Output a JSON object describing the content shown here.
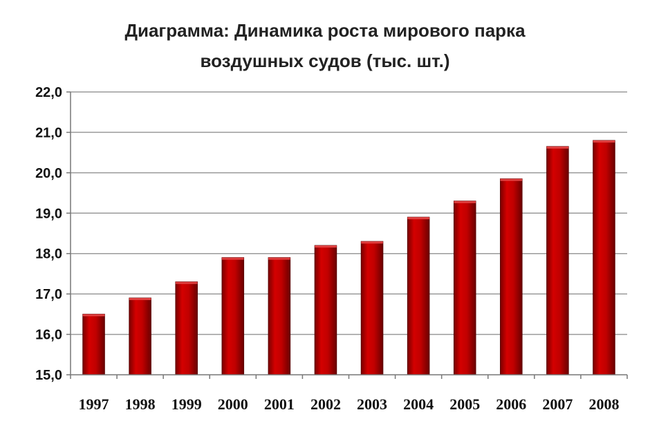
{
  "chart_data": {
    "type": "bar",
    "title_line1": "Диаграмма: Динамика роста мирового парка",
    "title_line2": "воздушных судов (тыс. шт.)",
    "categories": [
      "1997",
      "1998",
      "1999",
      "2000",
      "2001",
      "2002",
      "2003",
      "2004",
      "2005",
      "2006",
      "2007",
      "2008"
    ],
    "values": [
      16.5,
      16.9,
      17.3,
      17.9,
      17.9,
      18.2,
      18.3,
      18.9,
      19.3,
      19.85,
      20.65,
      20.8
    ],
    "ylim": [
      15,
      22
    ],
    "yticks": [
      "15,0",
      "16,0",
      "17,0",
      "18,0",
      "19,0",
      "20,0",
      "21,0",
      "22,0"
    ],
    "grid": true,
    "bar_color": "#c00000",
    "xlabel": "",
    "ylabel": ""
  }
}
